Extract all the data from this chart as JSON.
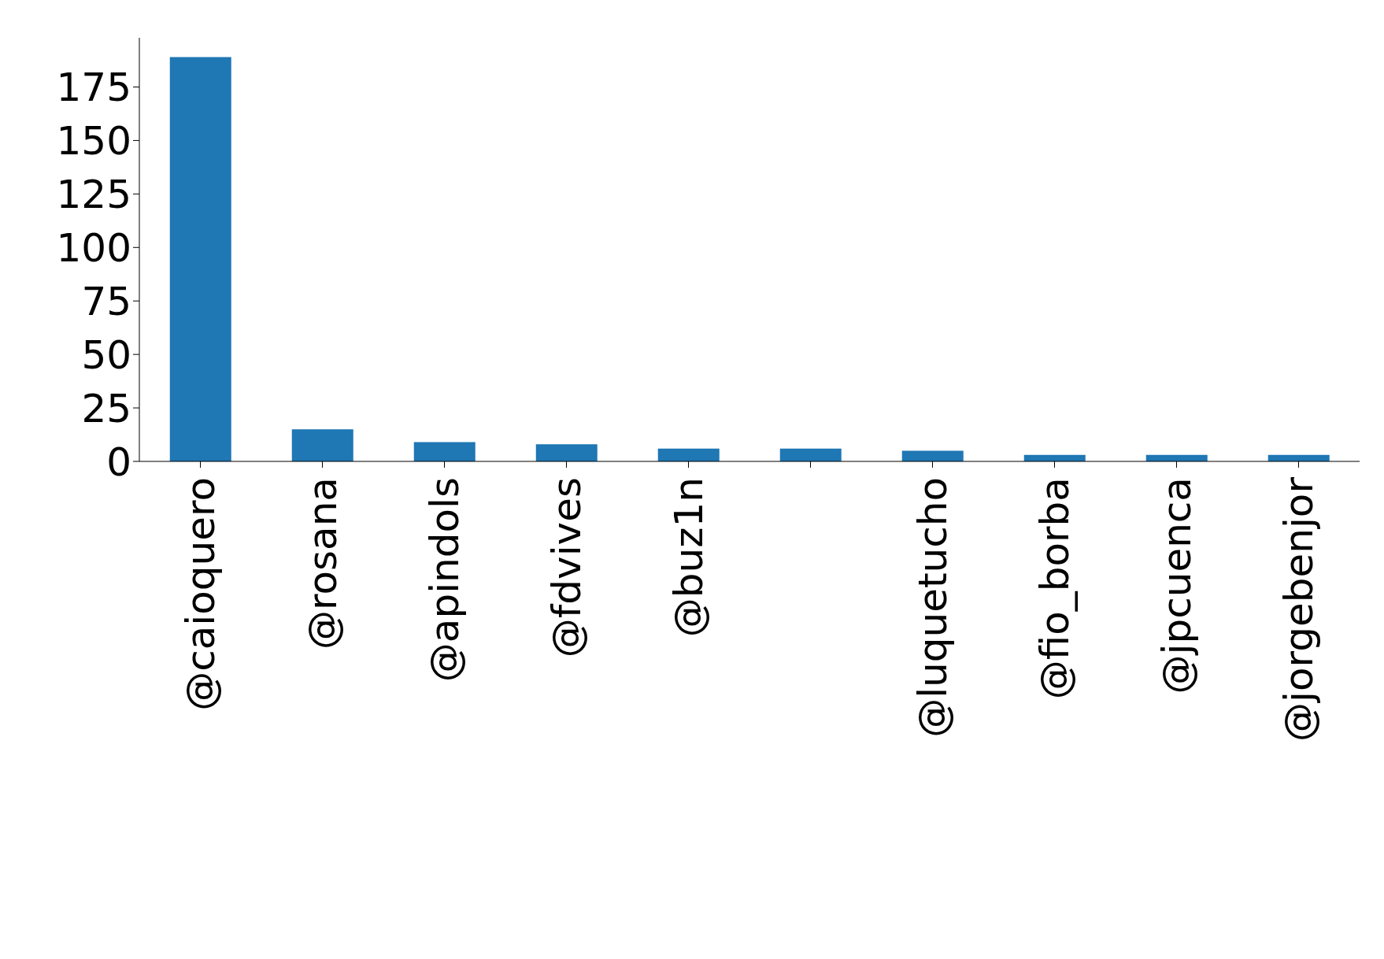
{
  "chart_data": {
    "type": "bar",
    "categories": [
      "@caioquero",
      "@rosana",
      "@apindols",
      "@fdvives",
      "@buz1n",
      null,
      "@luquetucho",
      "@fio_borba",
      "@jpcuenca",
      "@jorgebenjor"
    ],
    "values": [
      189,
      15,
      9,
      8,
      6,
      6,
      5,
      3,
      3,
      3
    ],
    "color": "#1f77b4",
    "ylim": [
      0,
      198
    ],
    "yticks": [
      0,
      25,
      50,
      75,
      100,
      125,
      150,
      175
    ],
    "grid": false,
    "legend": false
  }
}
